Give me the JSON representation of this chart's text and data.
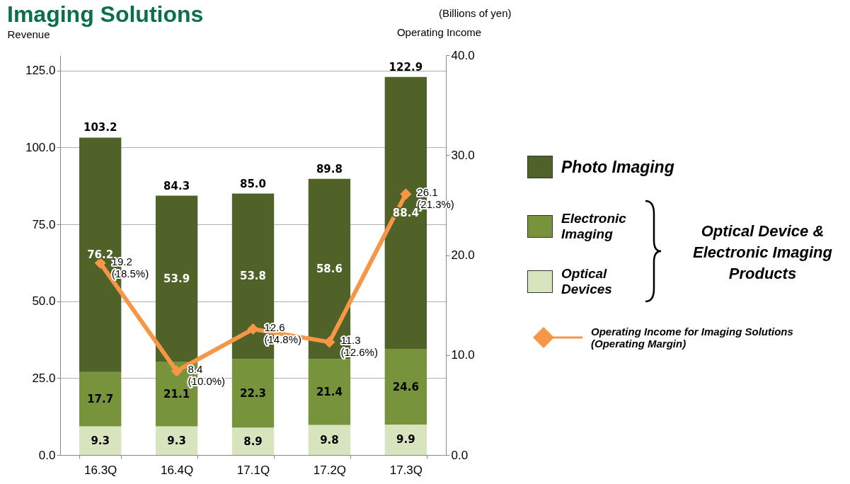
{
  "chart_data": {
    "type": "bar",
    "title": "Imaging Solutions",
    "stacked": true,
    "categories": [
      "16.3Q",
      "16.4Q",
      "17.1Q",
      "17.2Q",
      "17.3Q"
    ],
    "series": [
      {
        "name": "Optical Devices",
        "color": "#d7e4bd",
        "values": [
          9.3,
          9.3,
          8.9,
          9.8,
          9.9
        ]
      },
      {
        "name": "Electronic Imaging",
        "color": "#77933c",
        "values": [
          17.7,
          21.1,
          22.3,
          21.4,
          24.6
        ]
      },
      {
        "name": "Photo Imaging",
        "color": "#4f6228",
        "values": [
          76.2,
          53.9,
          53.8,
          58.6,
          88.4
        ]
      },
      {
        "name": "Operating Income for Imaging Solutions (Operating Margin)",
        "type": "line",
        "axis": "y2",
        "color": "#f79646",
        "marker": "diamond",
        "values": [
          19.2,
          8.4,
          12.6,
          11.3,
          26.1
        ],
        "value_labels": [
          "19.2 (18.5%)",
          "8.4 (10.0%)",
          "12.6 (14.8%)",
          "11.3 (12.6%)",
          "26.1 (21.3%)"
        ]
      }
    ],
    "data_labels": true,
    "totals": [
      "103.2",
      "84.3",
      "85.0",
      "89.8",
      "122.9"
    ],
    "ylabel": "Revenue",
    "y2label": "Operating Income",
    "ylim": [
      0,
      130
    ],
    "yticks": [
      {
        "value": 0,
        "label": "0.0"
      },
      {
        "value": 25,
        "label": "25.0"
      },
      {
        "value": 50,
        "label": "50.0"
      },
      {
        "value": 75,
        "label": "75.0"
      },
      {
        "value": 100,
        "label": "100.0"
      },
      {
        "value": 125,
        "label": "125.0"
      }
    ],
    "y2lim": [
      0,
      40
    ],
    "y2ticks": [
      {
        "value": 0,
        "label": "0.0"
      },
      {
        "value": 10,
        "label": "10.0"
      },
      {
        "value": 20,
        "label": "20.0"
      },
      {
        "value": 30,
        "label": "30.0"
      },
      {
        "value": 40,
        "label": "40.0"
      }
    ],
    "grid": "y",
    "legend": "right",
    "annotations": [
      "(Billions of yen)",
      "Optical Device & Electronic Imaging Products"
    ]
  }
}
